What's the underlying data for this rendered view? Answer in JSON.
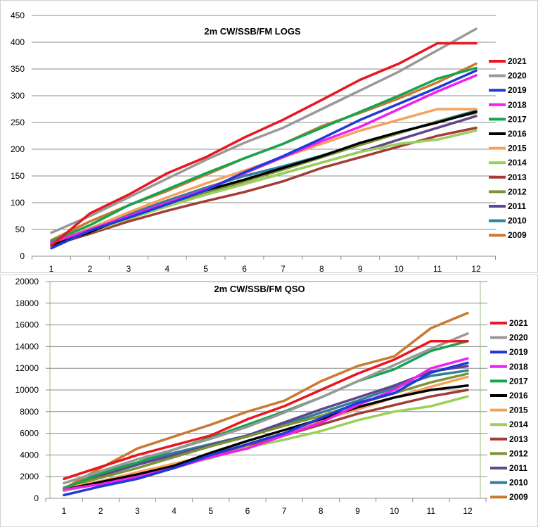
{
  "chart_data": [
    {
      "type": "line",
      "title": "2m CW/SSB/FM LOGS",
      "x": [
        1,
        2,
        3,
        4,
        5,
        6,
        7,
        8,
        9,
        10,
        11,
        12
      ],
      "ylim": [
        0,
        450
      ],
      "yticks": [
        0,
        50,
        100,
        150,
        200,
        250,
        300,
        350,
        400,
        450
      ],
      "grid": true,
      "legend": "right",
      "series": [
        {
          "name": "2021",
          "color": "#e8171f",
          "values": [
            20,
            80,
            115,
            155,
            185,
            222,
            255,
            292,
            330,
            360,
            398,
            398
          ]
        },
        {
          "name": "2020",
          "color": "#999999",
          "values": [
            44,
            75,
            110,
            145,
            180,
            212,
            240,
            275,
            310,
            345,
            385,
            425
          ]
        },
        {
          "name": "2019",
          "color": "#1f3ad6",
          "values": [
            15,
            48,
            72,
            97,
            123,
            157,
            187,
            220,
            255,
            285,
            315,
            347
          ]
        },
        {
          "name": "2018",
          "color": "#ee22ee",
          "values": [
            25,
            50,
            75,
            100,
            125,
            155,
            185,
            215,
            242,
            275,
            308,
            338
          ]
        },
        {
          "name": "2017",
          "color": "#16a451",
          "values": [
            28,
            58,
            95,
            125,
            155,
            183,
            210,
            240,
            270,
            300,
            332,
            352
          ]
        },
        {
          "name": "2016",
          "color": "#000000",
          "values": [
            20,
            45,
            75,
            100,
            123,
            143,
            165,
            187,
            212,
            232,
            250,
            270
          ]
        },
        {
          "name": "2015",
          "color": "#f5a25b",
          "values": [
            25,
            52,
            82,
            110,
            136,
            160,
            185,
            210,
            235,
            255,
            275,
            275
          ]
        },
        {
          "name": "2014",
          "color": "#99d05a",
          "values": [
            20,
            45,
            70,
            93,
            115,
            135,
            155,
            175,
            195,
            210,
            218,
            235
          ]
        },
        {
          "name": "2013",
          "color": "#a33b38",
          "values": [
            20,
            42,
            65,
            85,
            103,
            120,
            140,
            165,
            185,
            205,
            225,
            240
          ]
        },
        {
          "name": "2012",
          "color": "#7c9437",
          "values": [
            22,
            46,
            70,
            94,
            118,
            140,
            162,
            185,
            208,
            230,
            252,
            268
          ]
        },
        {
          "name": "2011",
          "color": "#60468c",
          "values": [
            24,
            48,
            72,
            95,
            115,
            135,
            155,
            175,
            195,
            218,
            240,
            262
          ]
        },
        {
          "name": "2010",
          "color": "#2e819a",
          "values": [
            25,
            50,
            78,
            104,
            128,
            150,
            168,
            188,
            210,
            230,
            252,
            272
          ]
        },
        {
          "name": "2009",
          "color": "#c97a32",
          "values": [
            30,
            65,
            95,
            122,
            152,
            183,
            210,
            243,
            268,
            295,
            325,
            360
          ]
        }
      ]
    },
    {
      "type": "line",
      "title": "2m CW/SSB/FM QSO",
      "x": [
        1,
        2,
        3,
        4,
        5,
        6,
        7,
        8,
        9,
        10,
        11,
        12
      ],
      "ylim": [
        0,
        20000
      ],
      "yticks": [
        0,
        2000,
        4000,
        6000,
        8000,
        10000,
        12000,
        14000,
        16000,
        18000,
        20000
      ],
      "grid": true,
      "legend": "right",
      "series": [
        {
          "name": "2021",
          "color": "#e8171f",
          "values": [
            1800,
            2900,
            4000,
            4900,
            5800,
            7300,
            8500,
            10000,
            11500,
            12800,
            14500,
            14500
          ]
        },
        {
          "name": "2020",
          "color": "#999999",
          "values": [
            1400,
            2500,
            3600,
            4500,
            5500,
            6600,
            7900,
            9300,
            10800,
            12300,
            13800,
            15200
          ]
        },
        {
          "name": "2019",
          "color": "#1f3ad6",
          "values": [
            300,
            1100,
            1800,
            2800,
            4000,
            5000,
            6000,
            7400,
            8800,
            9700,
            11600,
            12500
          ]
        },
        {
          "name": "2018",
          "color": "#ee22ee",
          "values": [
            800,
            1300,
            2000,
            2800,
            3800,
            4600,
            5800,
            7000,
            8600,
            10000,
            12000,
            12900
          ]
        },
        {
          "name": "2017",
          "color": "#16a451",
          "values": [
            900,
            2300,
            3300,
            4500,
            5600,
            6800,
            8000,
            9300,
            10800,
            11900,
            13600,
            14500
          ]
        },
        {
          "name": "2016",
          "color": "#000000",
          "values": [
            800,
            1500,
            2200,
            3000,
            4200,
            5300,
            6300,
            7300,
            8400,
            9300,
            10000,
            10400
          ]
        },
        {
          "name": "2015",
          "color": "#f5a25b",
          "values": [
            900,
            1600,
            2400,
            3200,
            4000,
            5000,
            6000,
            7200,
            8200,
            9300,
            10300,
            11200
          ]
        },
        {
          "name": "2014",
          "color": "#99d05a",
          "values": [
            700,
            1400,
            2200,
            3000,
            3700,
            4700,
            5400,
            6200,
            7200,
            8000,
            8500,
            9400
          ]
        },
        {
          "name": "2013",
          "color": "#a33b38",
          "values": [
            700,
            1400,
            2000,
            2800,
            3800,
            4800,
            5800,
            6800,
            7800,
            8600,
            9400,
            10000
          ]
        },
        {
          "name": "2012",
          "color": "#7c9437",
          "values": [
            1000,
            1900,
            2800,
            3800,
            4800,
            5700,
            6700,
            7600,
            8700,
            9700,
            10700,
            11500
          ]
        },
        {
          "name": "2011",
          "color": "#60468c",
          "values": [
            900,
            2100,
            3100,
            4000,
            4900,
            5800,
            7000,
            8200,
            9300,
            10400,
            11700,
            12200
          ]
        },
        {
          "name": "2010",
          "color": "#2e819a",
          "values": [
            800,
            2400,
            3300,
            4200,
            5000,
            5800,
            6800,
            7900,
            9000,
            10200,
            11300,
            11800
          ]
        },
        {
          "name": "2009",
          "color": "#c97a32",
          "values": [
            900,
            2800,
            4600,
            5700,
            6800,
            8000,
            9000,
            10800,
            12200,
            13100,
            15700,
            17100
          ]
        }
      ]
    }
  ]
}
